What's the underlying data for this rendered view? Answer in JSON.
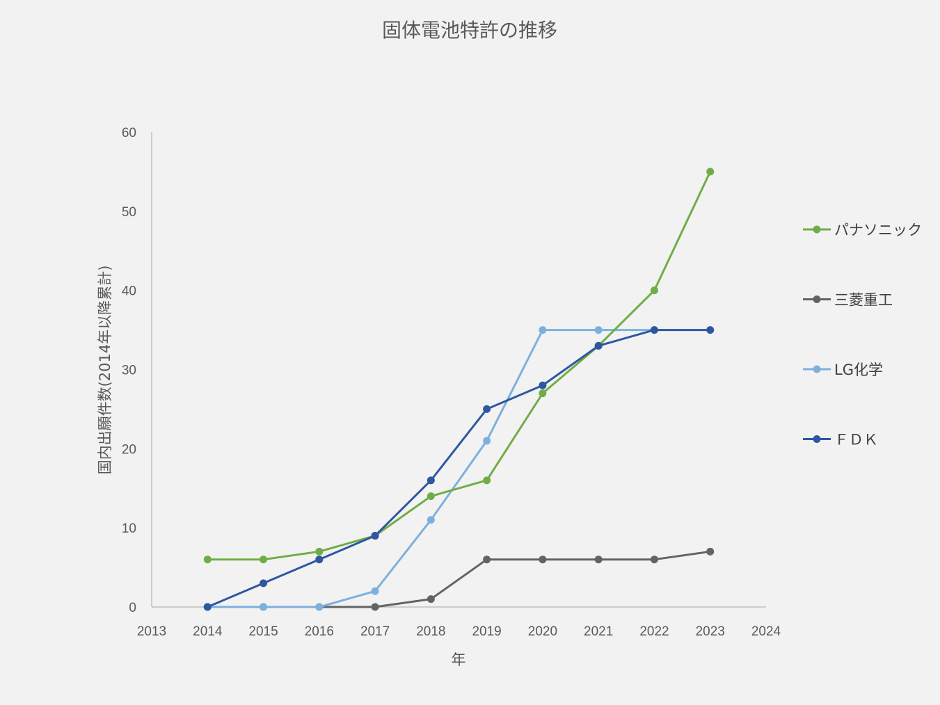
{
  "chart_data": {
    "type": "line",
    "title": "固体電池特許の推移",
    "xlabel": "年",
    "ylabel": "国内出願件数(2014年以降累計)",
    "xlim": [
      2013,
      2024
    ],
    "ylim": [
      0,
      60
    ],
    "x_ticks": [
      "2013",
      "2014",
      "2015",
      "2016",
      "2017",
      "2018",
      "2019",
      "2020",
      "2021",
      "2022",
      "2023",
      "2024"
    ],
    "y_ticks": [
      "0",
      "10",
      "20",
      "30",
      "40",
      "50",
      "60"
    ],
    "grid": false,
    "legend_position": "right",
    "x": [
      2014,
      2015,
      2016,
      2017,
      2018,
      2019,
      2020,
      2021,
      2022,
      2023
    ],
    "series": [
      {
        "name": "パナソニック",
        "color": "#70ad47",
        "values": [
          6,
          6,
          7,
          9,
          14,
          16,
          27,
          33,
          40,
          55
        ]
      },
      {
        "name": "三菱重工",
        "color": "#636363",
        "values": [
          0,
          0,
          0,
          0,
          1,
          6,
          6,
          6,
          6,
          7
        ]
      },
      {
        "name": "LG化学",
        "color": "#7eb0de",
        "values": [
          0,
          0,
          0,
          2,
          11,
          21,
          35,
          35,
          35,
          null
        ]
      },
      {
        "name": "ＦＤＫ",
        "color": "#2f57a0",
        "values": [
          0,
          3,
          6,
          9,
          16,
          25,
          28,
          33,
          35,
          35
        ]
      }
    ]
  }
}
